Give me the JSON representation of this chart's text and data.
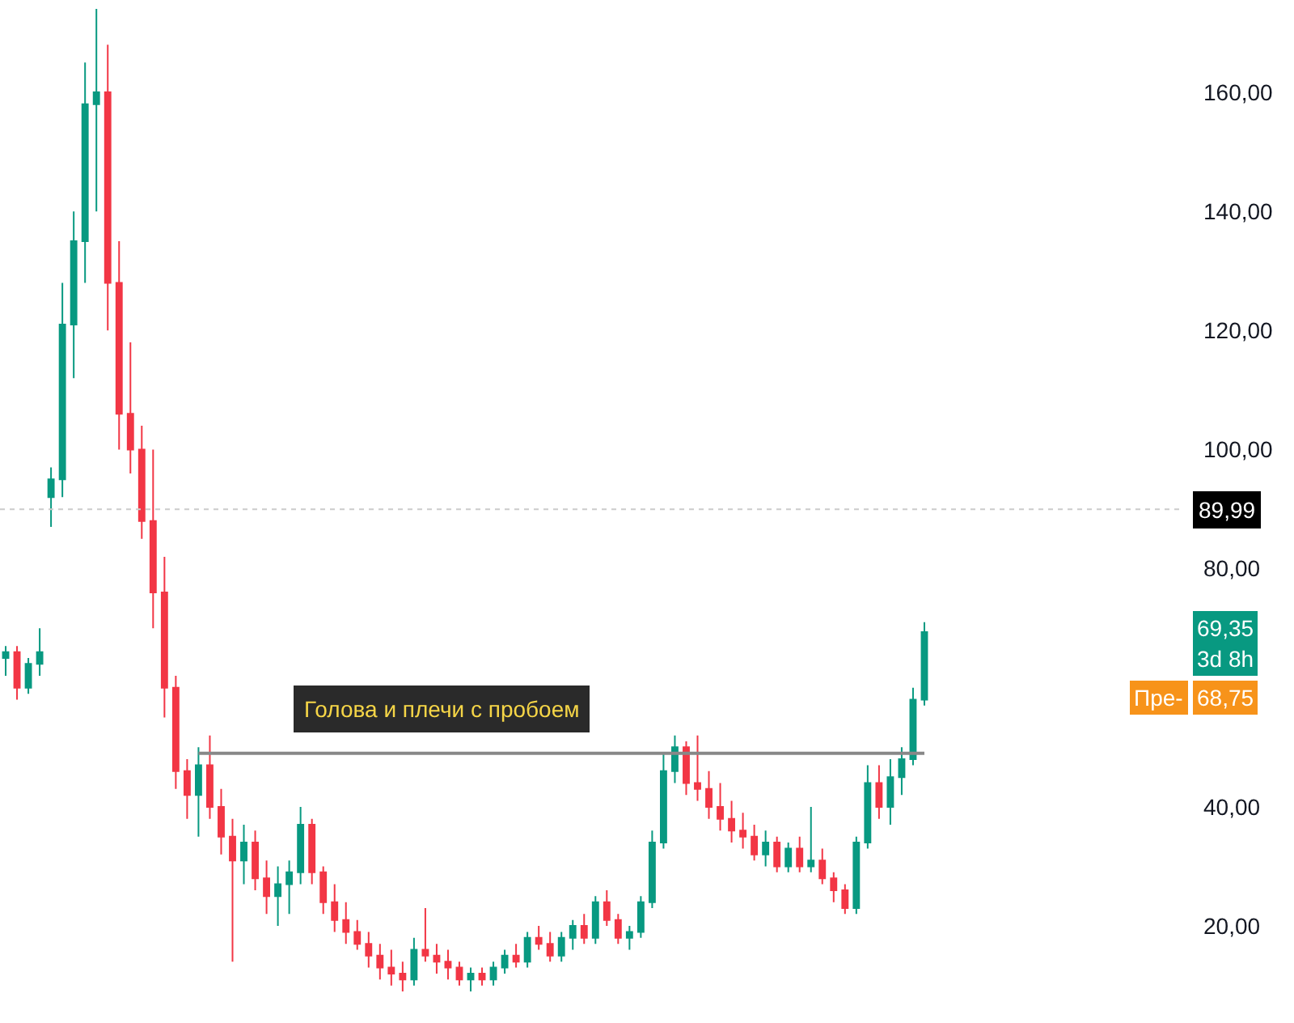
{
  "chart_data": {
    "type": "candlestick",
    "categories": [
      null,
      null,
      null,
      null,
      null,
      null,
      null,
      null,
      null,
      null,
      null,
      null,
      null,
      null,
      null,
      null,
      null,
      null,
      null,
      null,
      null,
      null,
      null,
      null,
      null,
      null,
      null,
      null,
      null,
      null,
      null,
      null,
      null,
      null,
      null,
      null,
      null,
      null,
      null,
      null,
      null,
      null,
      null,
      null,
      null,
      null,
      null,
      null,
      null,
      null,
      null,
      null,
      null,
      null,
      null,
      null,
      null,
      null,
      null,
      null,
      null,
      null,
      null,
      null,
      null,
      null,
      null,
      null,
      null,
      null,
      null,
      null,
      null,
      null,
      null,
      null,
      null,
      null,
      null,
      null,
      null,
      null
    ],
    "ohlc": [
      [
        65,
        67,
        62,
        66
      ],
      [
        66,
        67,
        58,
        60
      ],
      [
        60,
        65,
        59,
        64
      ],
      [
        64,
        70,
        62,
        66
      ],
      [
        92,
        97,
        87,
        95
      ],
      [
        95,
        128,
        92,
        121
      ],
      [
        121,
        140,
        112,
        135
      ],
      [
        135,
        165,
        128,
        158
      ],
      [
        158,
        174,
        140,
        160
      ],
      [
        160,
        168,
        120,
        128
      ],
      [
        128,
        135,
        100,
        106
      ],
      [
        106,
        118,
        96,
        100
      ],
      [
        100,
        104,
        85,
        88
      ],
      [
        88,
        100,
        70,
        76
      ],
      [
        76,
        82,
        55,
        60
      ],
      [
        60,
        62,
        43,
        46
      ],
      [
        46,
        48,
        38,
        42
      ],
      [
        42,
        50,
        35,
        47
      ],
      [
        47,
        52,
        38,
        40
      ],
      [
        40,
        43,
        32,
        35
      ],
      [
        35,
        38,
        14,
        31
      ],
      [
        31,
        37,
        27,
        34
      ],
      [
        34,
        36,
        26,
        28
      ],
      [
        28,
        31,
        22,
        25
      ],
      [
        25,
        30,
        20,
        27
      ],
      [
        27,
        31,
        22,
        29
      ],
      [
        29,
        40,
        27,
        37
      ],
      [
        37,
        38,
        27,
        29
      ],
      [
        29,
        30,
        22,
        24
      ],
      [
        24,
        27,
        19,
        21
      ],
      [
        21,
        24,
        17,
        19
      ],
      [
        19,
        21,
        16,
        17
      ],
      [
        17,
        19,
        13,
        15
      ],
      [
        15,
        17,
        11,
        13
      ],
      [
        13,
        16,
        10,
        12
      ],
      [
        12,
        14,
        9,
        11
      ],
      [
        11,
        18,
        10,
        16
      ],
      [
        16,
        23,
        14,
        15
      ],
      [
        15,
        17,
        12,
        14
      ],
      [
        14,
        16,
        11,
        13
      ],
      [
        13,
        14,
        10,
        11
      ],
      [
        11,
        13,
        9,
        12
      ],
      [
        12,
        13,
        10,
        11
      ],
      [
        11,
        14,
        10,
        13
      ],
      [
        13,
        16,
        12,
        15
      ],
      [
        15,
        17,
        13,
        14
      ],
      [
        14,
        19,
        13,
        18
      ],
      [
        18,
        20,
        16,
        17
      ],
      [
        17,
        19,
        14,
        15
      ],
      [
        15,
        19,
        14,
        18
      ],
      [
        18,
        21,
        16,
        20
      ],
      [
        20,
        22,
        17,
        18
      ],
      [
        18,
        25,
        17,
        24
      ],
      [
        24,
        26,
        20,
        21
      ],
      [
        21,
        22,
        17,
        18
      ],
      [
        18,
        20,
        16,
        19
      ],
      [
        19,
        25,
        18,
        24
      ],
      [
        24,
        36,
        23,
        34
      ],
      [
        34,
        49,
        33,
        46
      ],
      [
        46,
        52,
        44,
        50
      ],
      [
        50,
        51,
        42,
        44
      ],
      [
        44,
        52,
        41,
        43
      ],
      [
        43,
        46,
        38,
        40
      ],
      [
        40,
        44,
        36,
        38
      ],
      [
        38,
        41,
        34,
        36
      ],
      [
        36,
        39,
        33,
        35
      ],
      [
        35,
        37,
        31,
        32
      ],
      [
        32,
        36,
        30,
        34
      ],
      [
        34,
        35,
        29,
        30
      ],
      [
        30,
        34,
        29,
        33
      ],
      [
        33,
        35,
        29,
        30
      ],
      [
        30,
        40,
        29,
        31
      ],
      [
        31,
        33,
        27,
        28
      ],
      [
        28,
        29,
        24,
        26
      ],
      [
        26,
        27,
        22,
        23
      ],
      [
        23,
        35,
        22,
        34
      ],
      [
        34,
        47,
        33,
        44
      ],
      [
        44,
        47,
        38,
        40
      ],
      [
        40,
        48,
        37,
        45
      ],
      [
        45,
        50,
        42,
        48
      ],
      [
        48,
        60,
        47,
        58
      ],
      [
        58,
        71,
        57,
        69.35
      ]
    ],
    "series": [
      {
        "type": "line",
        "color": "#888888",
        "values": [
          null,
          null,
          null,
          null,
          null,
          null,
          null,
          null,
          null,
          null,
          null,
          null,
          null,
          null,
          null,
          null,
          null,
          49,
          49,
          49,
          49,
          49,
          49,
          49,
          49,
          49,
          49,
          49,
          49,
          49,
          49,
          49,
          49,
          49,
          49,
          49,
          49,
          49,
          49,
          49,
          49,
          49,
          49,
          49,
          49,
          49,
          49,
          49,
          49,
          49,
          49,
          49,
          49,
          49,
          49,
          49,
          49,
          49,
          49,
          49,
          49,
          49,
          49,
          49,
          49,
          49,
          49,
          49,
          49,
          49,
          49,
          49,
          49,
          49,
          49,
          49,
          49,
          49,
          49,
          49,
          49,
          49
        ]
      }
    ],
    "ylim": [
      3.7,
      175.5
    ],
    "yticks": [
      {
        "value": 20,
        "label": "20,00"
      },
      {
        "value": 40,
        "label": "40,00"
      },
      {
        "value": 80,
        "label": "80,00"
      },
      {
        "value": 100,
        "label": "100,00"
      },
      {
        "value": 120,
        "label": "120,00"
      },
      {
        "value": 140,
        "label": "140,00"
      },
      {
        "value": 160,
        "label": "160,00"
      }
    ],
    "tick_labels": "y",
    "ref_lines": [
      {
        "axis": "y",
        "value": 89.99,
        "label": "89,99",
        "color": "#cccccc",
        "line_style": "dotted"
      }
    ],
    "annotations": [
      "Голова и плечи с пробоем",
      "69,35",
      "3d 8h",
      "Пре-",
      "68,75"
    ]
  }
}
